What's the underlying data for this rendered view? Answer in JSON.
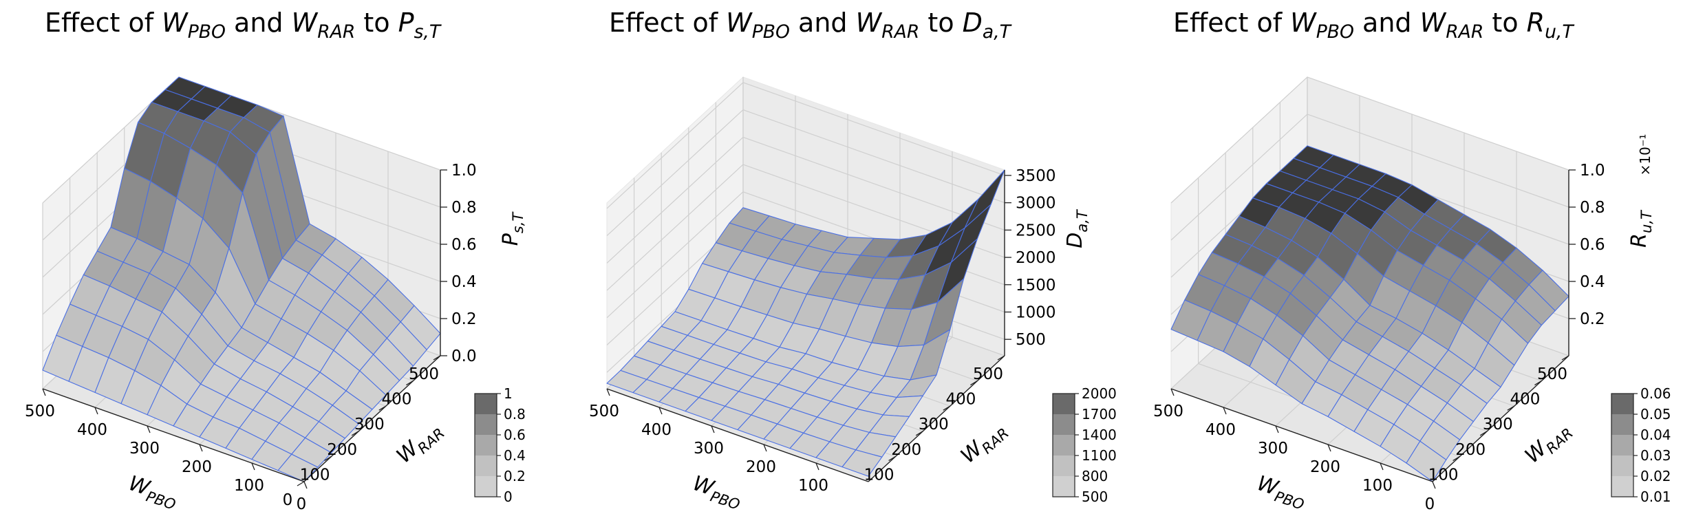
{
  "chart_data": [
    {
      "type": "surface",
      "title": {
        "prefix": "Effect of ",
        "w1": "W",
        "w1sub": "PBO",
        "mid": " and ",
        "w2": "W",
        "w2sub": "RAR",
        "suffix": " to ",
        "z": "P",
        "zsub": "s,T"
      },
      "xlabel": {
        "main": "W",
        "sub": "PBO"
      },
      "ylabel": {
        "main": "W",
        "sub": "RAR"
      },
      "zlabel": {
        "main": "P",
        "sub": "s,T"
      },
      "x": [
        0,
        10,
        20,
        30,
        40,
        50,
        100,
        200,
        300,
        400,
        500
      ],
      "y": [
        0,
        10,
        20,
        30,
        40,
        50,
        100,
        200,
        300,
        400,
        500
      ],
      "xticks": [
        "0",
        "100",
        "200",
        "300",
        "400",
        "500"
      ],
      "yticks": [
        "0",
        "100",
        "200",
        "300",
        "400",
        "500"
      ],
      "zticks": [
        "0.0",
        "0.2",
        "0.4",
        "0.6",
        "0.8",
        "1.0"
      ],
      "zlim": [
        0,
        1
      ],
      "z_exponent": "",
      "colorbar": {
        "ticks": [
          "0",
          "0.2",
          "0.4",
          "0.6",
          "0.8",
          "1"
        ],
        "levels": [
          0,
          0.2,
          0.4,
          0.6,
          0.8,
          1.0
        ]
      },
      "z": [
        [
          0.0,
          0.01,
          0.02,
          0.03,
          0.04,
          0.05,
          0.06,
          0.07,
          0.08,
          0.1,
          0.12
        ],
        [
          0.01,
          0.03,
          0.05,
          0.07,
          0.09,
          0.1,
          0.14,
          0.16,
          0.18,
          0.2,
          0.22
        ],
        [
          0.02,
          0.05,
          0.08,
          0.1,
          0.13,
          0.15,
          0.2,
          0.24,
          0.27,
          0.29,
          0.31
        ],
        [
          0.03,
          0.07,
          0.1,
          0.13,
          0.16,
          0.18,
          0.24,
          0.29,
          0.33,
          0.36,
          0.38
        ],
        [
          0.04,
          0.08,
          0.12,
          0.15,
          0.18,
          0.21,
          0.27,
          0.33,
          0.38,
          0.41,
          0.43
        ],
        [
          0.05,
          0.1,
          0.14,
          0.18,
          0.21,
          0.24,
          0.3,
          0.36,
          0.41,
          0.44,
          0.46
        ],
        [
          0.06,
          0.15,
          0.22,
          0.28,
          0.33,
          0.38,
          0.55,
          0.78,
          0.92,
          0.97,
          0.99
        ],
        [
          0.07,
          0.18,
          0.28,
          0.36,
          0.42,
          0.48,
          0.66,
          0.88,
          0.99,
          1.0,
          1.0
        ],
        [
          0.08,
          0.2,
          0.3,
          0.38,
          0.45,
          0.5,
          0.72,
          0.92,
          1.0,
          1.0,
          1.0
        ],
        [
          0.09,
          0.21,
          0.31,
          0.4,
          0.46,
          0.52,
          0.76,
          0.95,
          1.0,
          1.0,
          1.0
        ],
        [
          0.1,
          0.22,
          0.32,
          0.41,
          0.47,
          0.53,
          0.78,
          0.96,
          1.0,
          1.0,
          1.0
        ]
      ]
    },
    {
      "type": "surface",
      "title": {
        "prefix": "Effect of ",
        "w1": "W",
        "w1sub": "PBO",
        "mid": " and ",
        "w2": "W",
        "w2sub": "RAR",
        "suffix": " to ",
        "z": "D",
        "zsub": "a,T"
      },
      "xlabel": {
        "main": "W",
        "sub": "PBO"
      },
      "ylabel": {
        "main": "W",
        "sub": "RAR"
      },
      "zlabel": {
        "main": "D",
        "sub": "a,T"
      },
      "x": [
        0,
        10,
        20,
        30,
        40,
        50,
        100,
        200,
        300,
        400,
        500
      ],
      "y": [
        0,
        10,
        20,
        30,
        40,
        50,
        100,
        200,
        300,
        400,
        500
      ],
      "xticks": [
        "100",
        "200",
        "300",
        "400",
        "500"
      ],
      "yticks": [
        "100",
        "200",
        "300",
        "400",
        "500"
      ],
      "zticks": [
        "500",
        "1000",
        "1500",
        "2000",
        "2500",
        "3000",
        "3500"
      ],
      "zlim": [
        200,
        3600
      ],
      "z_exponent": "",
      "colorbar": {
        "ticks": [
          "500",
          "800",
          "1100",
          "1400",
          "1700",
          "2000"
        ],
        "levels": [
          500,
          800,
          1100,
          1400,
          1700,
          2000
        ]
      },
      "z": [
        [
          300,
          420,
          560,
          700,
          850,
          1000,
          1600,
          2300,
          2800,
          3200,
          3600
        ],
        [
          300,
          380,
          470,
          560,
          650,
          740,
          1150,
          1700,
          2200,
          2600,
          2900
        ],
        [
          300,
          360,
          430,
          500,
          570,
          640,
          950,
          1400,
          1800,
          2100,
          2300
        ],
        [
          300,
          350,
          410,
          470,
          530,
          590,
          850,
          1250,
          1550,
          1750,
          1900
        ],
        [
          300,
          345,
          400,
          450,
          500,
          550,
          800,
          1150,
          1400,
          1550,
          1650
        ],
        [
          300,
          340,
          390,
          440,
          490,
          540,
          760,
          1080,
          1300,
          1420,
          1500
        ],
        [
          300,
          330,
          370,
          410,
          450,
          490,
          700,
          1000,
          1180,
          1300,
          1350
        ],
        [
          300,
          320,
          360,
          400,
          440,
          480,
          680,
          950,
          1120,
          1250,
          1300
        ],
        [
          300,
          315,
          350,
          390,
          430,
          470,
          660,
          920,
          1080,
          1200,
          1250
        ],
        [
          300,
          310,
          345,
          385,
          425,
          465,
          650,
          900,
          1050,
          1180,
          1230
        ],
        [
          300,
          305,
          340,
          380,
          420,
          460,
          640,
          880,
          1030,
          1160,
          1210
        ]
      ]
    },
    {
      "type": "surface",
      "title": {
        "prefix": "Effect of ",
        "w1": "W",
        "w1sub": "PBO",
        "mid": " and ",
        "w2": "W",
        "w2sub": "RAR",
        "suffix": " to ",
        "z": "R",
        "zsub": "u,T"
      },
      "xlabel": {
        "main": "W",
        "sub": "PBO"
      },
      "ylabel": {
        "main": "W",
        "sub": "RAR"
      },
      "zlabel": {
        "main": "R",
        "sub": "u,T"
      },
      "x": [
        0,
        10,
        20,
        30,
        40,
        50,
        100,
        200,
        300,
        400,
        500
      ],
      "y": [
        0,
        10,
        20,
        30,
        40,
        50,
        100,
        200,
        300,
        400,
        500
      ],
      "xticks": [
        "0",
        "100",
        "200",
        "300",
        "400",
        "500"
      ],
      "yticks": [
        "100",
        "200",
        "300",
        "400",
        "500"
      ],
      "zticks": [
        "0.2",
        "0.4",
        "0.6",
        "0.8",
        "1.0"
      ],
      "zlim": [
        0,
        0.1
      ],
      "z_exponent": "×10⁻¹",
      "colorbar": {
        "ticks": [
          "0.01",
          "0.02",
          "0.03",
          "0.04",
          "0.05",
          "0.06"
        ],
        "levels": [
          0.01,
          0.02,
          0.03,
          0.04,
          0.05,
          0.06
        ]
      },
      "z": [
        [
          0.0,
          0.005,
          0.009,
          0.012,
          0.015,
          0.017,
          0.022,
          0.027,
          0.03,
          0.031,
          0.032
        ],
        [
          0.005,
          0.01,
          0.014,
          0.017,
          0.02,
          0.022,
          0.029,
          0.035,
          0.038,
          0.04,
          0.041
        ],
        [
          0.009,
          0.014,
          0.018,
          0.021,
          0.024,
          0.027,
          0.035,
          0.041,
          0.045,
          0.047,
          0.048
        ],
        [
          0.012,
          0.017,
          0.021,
          0.025,
          0.028,
          0.031,
          0.039,
          0.046,
          0.05,
          0.052,
          0.053
        ],
        [
          0.015,
          0.02,
          0.024,
          0.028,
          0.031,
          0.034,
          0.042,
          0.049,
          0.053,
          0.055,
          0.056
        ],
        [
          0.017,
          0.022,
          0.027,
          0.031,
          0.034,
          0.036,
          0.045,
          0.052,
          0.056,
          0.058,
          0.059
        ],
        [
          0.022,
          0.029,
          0.035,
          0.039,
          0.042,
          0.045,
          0.052,
          0.058,
          0.061,
          0.062,
          0.062
        ],
        [
          0.027,
          0.035,
          0.041,
          0.046,
          0.049,
          0.052,
          0.058,
          0.062,
          0.063,
          0.063,
          0.063
        ],
        [
          0.03,
          0.038,
          0.045,
          0.05,
          0.053,
          0.056,
          0.061,
          0.063,
          0.063,
          0.063,
          0.063
        ],
        [
          0.031,
          0.04,
          0.047,
          0.052,
          0.055,
          0.058,
          0.062,
          0.063,
          0.063,
          0.063,
          0.063
        ],
        [
          0.032,
          0.041,
          0.048,
          0.053,
          0.056,
          0.059,
          0.062,
          0.063,
          0.063,
          0.063,
          0.063
        ]
      ]
    }
  ]
}
